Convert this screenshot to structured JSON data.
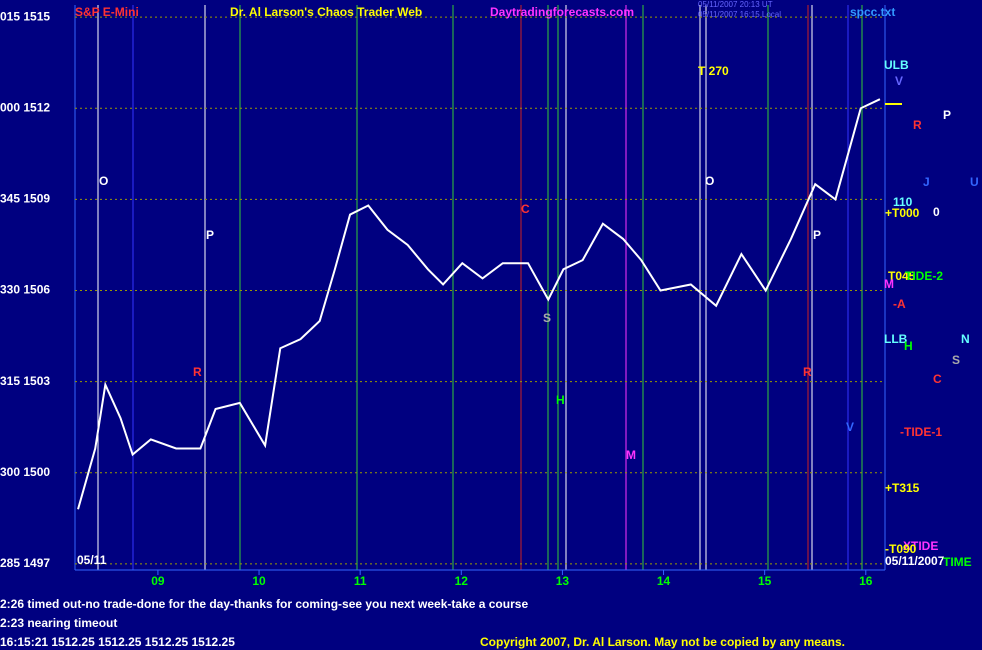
{
  "chart_data": {
    "type": "line",
    "title": "Dr. Al Larson's Chaos Trader Web",
    "symbol": "S&P E-Mini",
    "site": "Daytradingforecasts.com",
    "stamp_ut": "05/11/2007 20:13 UT",
    "stamp_local": "05/11/2007 16:15 Local",
    "file": "spcc.txt",
    "x": [
      8.21,
      8.38,
      8.48,
      8.63,
      8.75,
      8.93,
      9.18,
      9.42,
      9.57,
      9.81,
      10.06,
      10.21,
      10.41,
      10.6,
      10.75,
      10.9,
      11.08,
      11.27,
      11.47,
      11.67,
      11.82,
      12.01,
      12.21,
      12.41,
      12.66,
      12.86,
      13.01,
      13.2,
      13.4,
      13.6,
      13.78,
      13.97,
      14.27,
      14.52,
      14.77,
      15.01,
      15.26,
      15.5,
      15.7,
      15.95,
      16.14
    ],
    "series": [
      {
        "name": "S&P E-Mini",
        "color": "#ffffff",
        "values": [
          1498.8,
          1500.8,
          1502.9,
          1501.8,
          1500.6,
          1501.1,
          1500.8,
          1500.8,
          1502.1,
          1502.3,
          1500.9,
          1504.1,
          1504.4,
          1505.0,
          1506.7,
          1508.5,
          1508.8,
          1508.0,
          1507.5,
          1506.7,
          1506.2,
          1506.9,
          1506.4,
          1506.9,
          1506.9,
          1505.7,
          1506.7,
          1507.0,
          1508.2,
          1507.7,
          1507.0,
          1506.0,
          1506.2,
          1505.5,
          1507.2,
          1506.0,
          1507.7,
          1509.5,
          1509.0,
          1512.0,
          1512.3
        ]
      }
    ],
    "xlim": [
      8.18,
      16.19
    ],
    "ylim": [
      1496.8,
      1515.4
    ],
    "xticks": [
      {
        "value": 9,
        "label": "09"
      },
      10,
      11,
      12,
      13,
      14,
      15,
      16
    ],
    "yticks": [
      {
        "value": 1515,
        "label": "015 1515"
      },
      {
        "value": 1512,
        "label": "000 1512"
      },
      {
        "value": 1509,
        "label": "345 1509"
      },
      {
        "value": 1506,
        "label": "330 1506"
      },
      {
        "value": 1503,
        "label": "315 1503"
      },
      {
        "value": 1500,
        "label": "300 1500"
      },
      {
        "value": 1497,
        "label": "285 1497"
      }
    ],
    "grid": true,
    "annotations": [
      "T 270",
      "ULB",
      "V",
      "R",
      "P",
      "O",
      "C",
      "O",
      "110",
      "+T000",
      "J",
      "U",
      "0",
      "P",
      "P",
      "T045",
      "TIDE-2",
      "M",
      "-A",
      "S",
      "LLB",
      "H",
      "N",
      "S",
      "R",
      "C",
      "R",
      "H",
      "V",
      "-TIDE-1",
      "M",
      "+T315",
      "XTIDE",
      "-T090",
      "05/11",
      "05/11/2007",
      "TIME"
    ],
    "messages": [
      "2:26 timed out-no trade-done for the day-thanks for coming-see you next week-take a course",
      "2:23 nearing timeout",
      "16:15:21  1512.25  1512.25  1512.25  1512.25"
    ],
    "copyright": "Copyright 2007, Dr. Al Larson. May not be copied by any means."
  }
}
